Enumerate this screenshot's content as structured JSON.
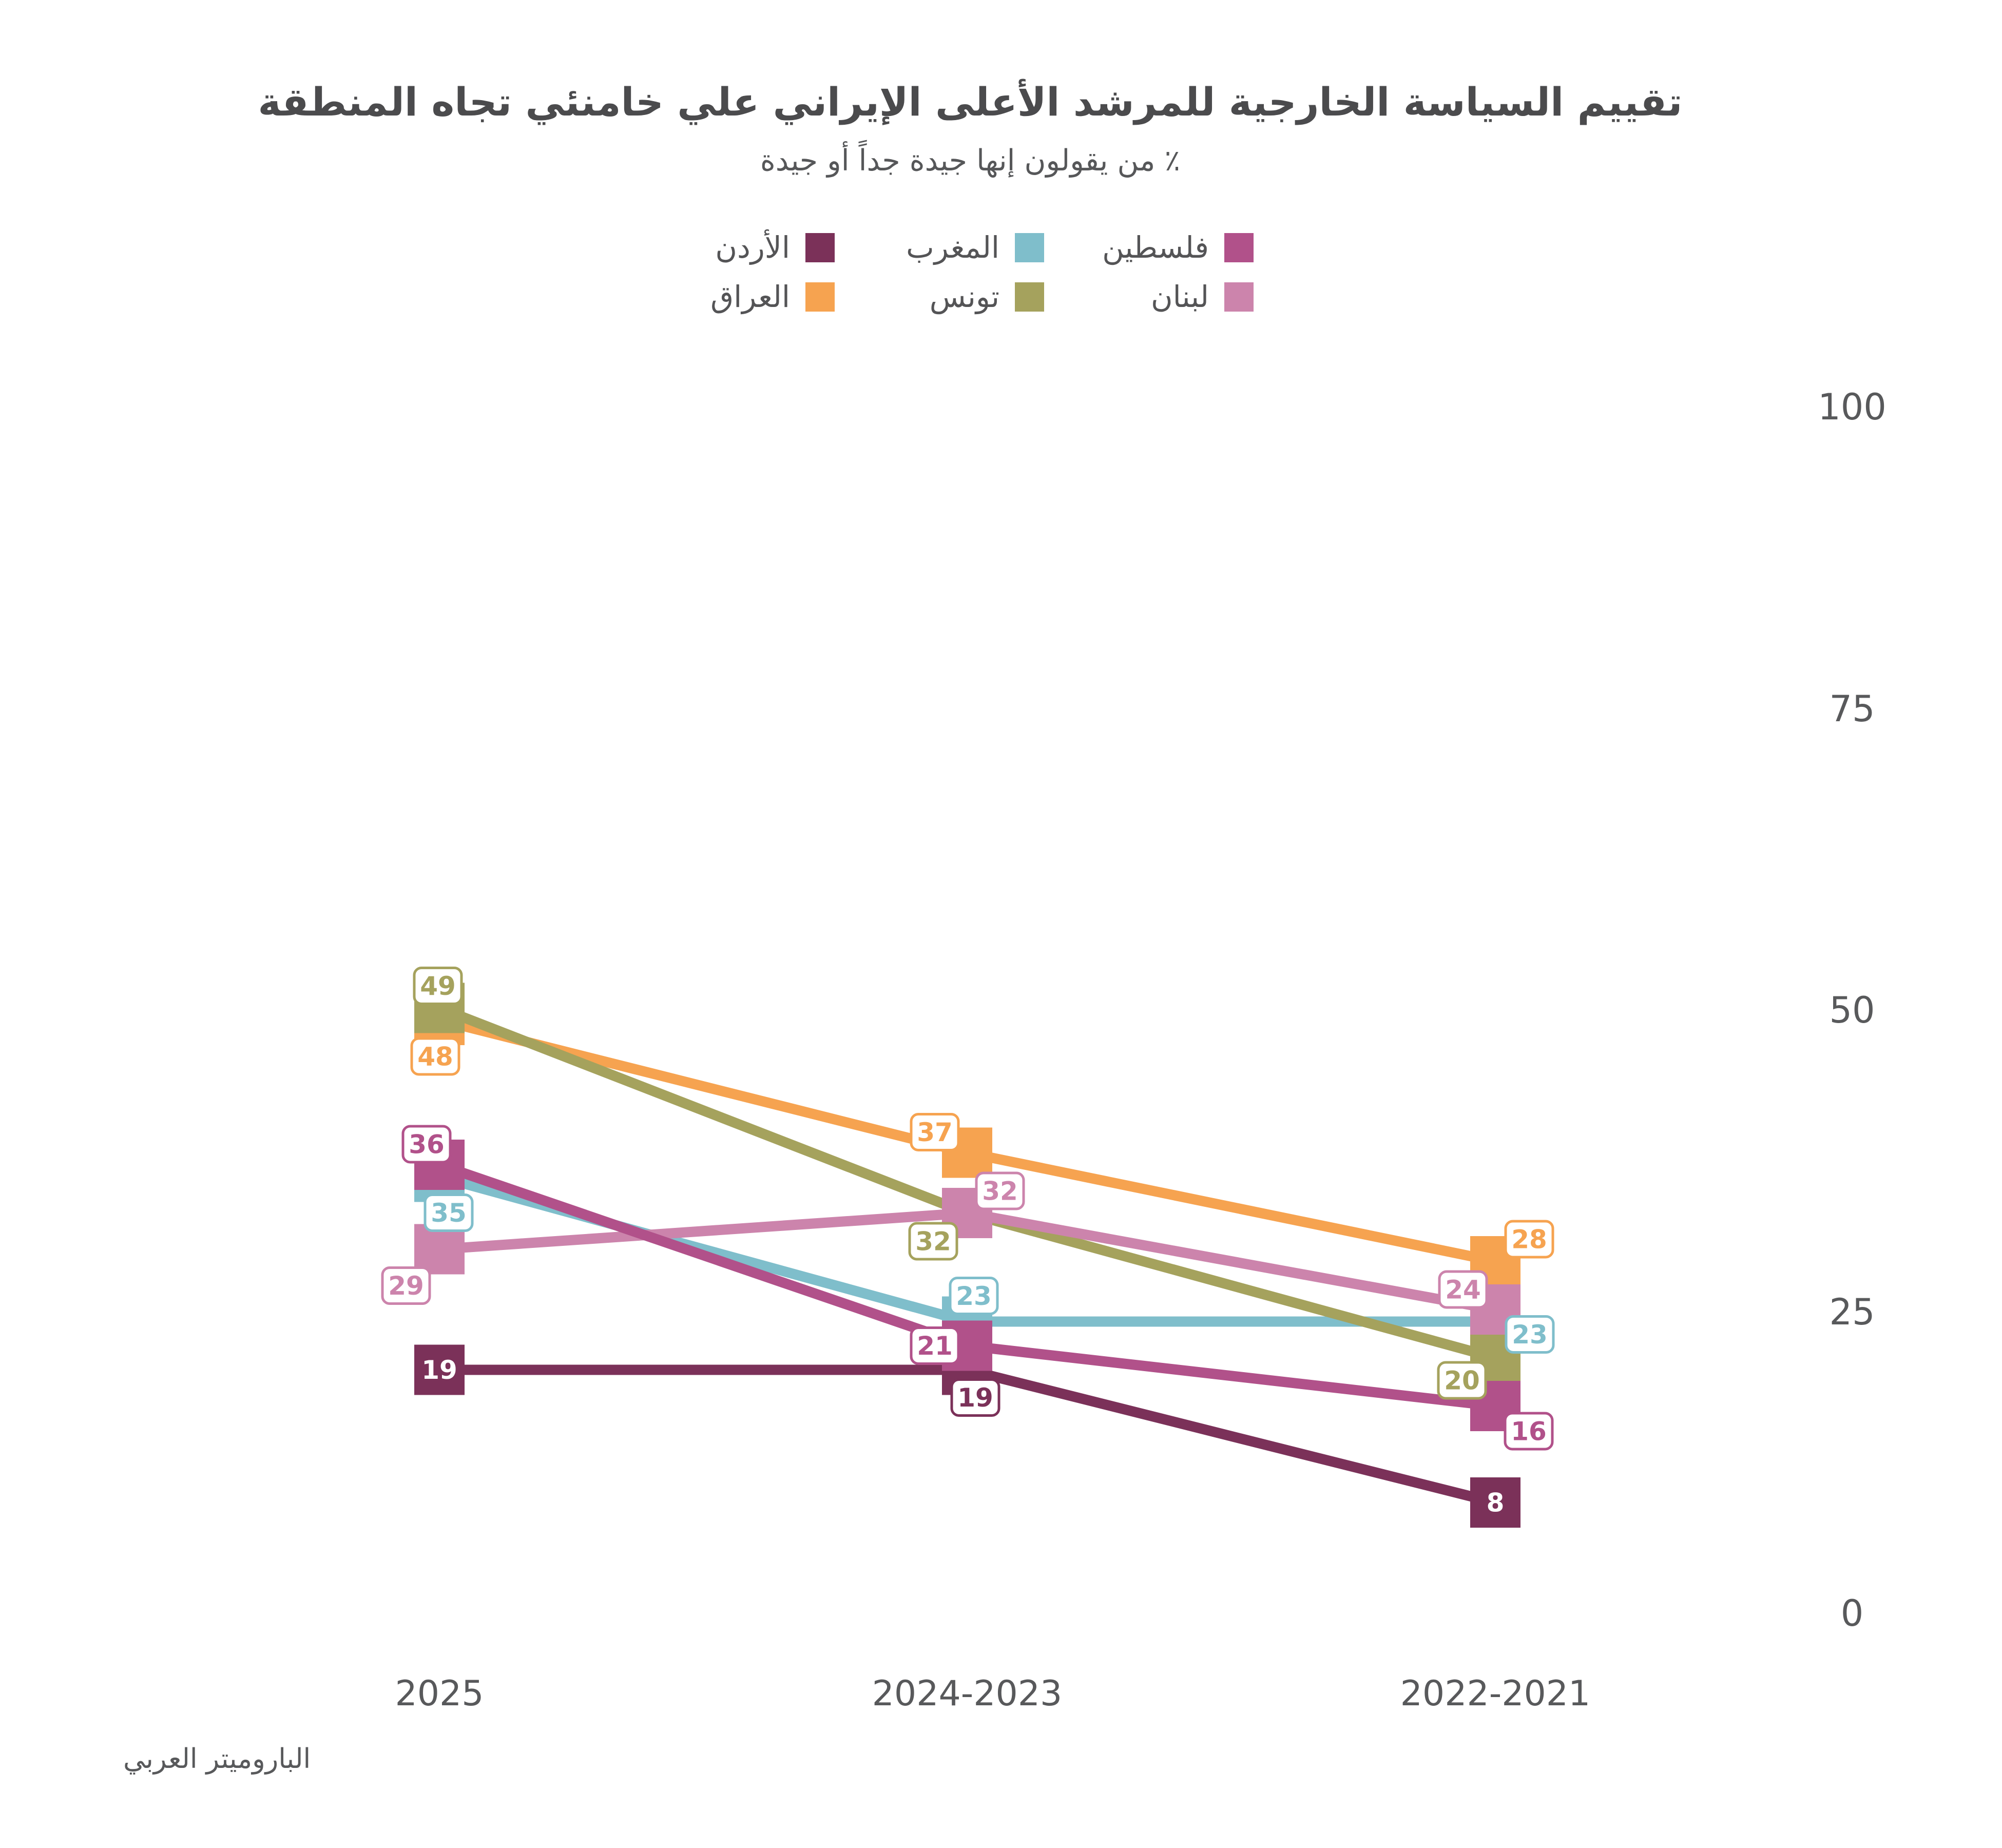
{
  "title": "تقييم السياسة الخارجية للمرشد الأعلى الإيراني علي خامنئي تجاه المنطقة",
  "subtitle": "٪ من يقولون إنها جيدة جداً أو جيدة",
  "source": "الباروميتر العربي",
  "colors": {
    "background": "#ffffff",
    "title_text": "#4b4b4d",
    "axis_text": "#58595b",
    "label_box_fill": "#ffffff",
    "inside_label_text": "#ffffff"
  },
  "legend": {
    "rows": [
      [
        "palestine",
        "morocco",
        "jordan"
      ],
      [
        "lebanon",
        "tunisia",
        "iraq"
      ]
    ]
  },
  "chart_data": {
    "type": "line",
    "categories": [
      "2025",
      "2024-2023",
      "2022-2021"
    ],
    "xlabel": "",
    "ylabel": "",
    "ylim": [
      0,
      100
    ],
    "yticks": [
      "100",
      "75",
      "50",
      "25",
      "0"
    ],
    "ytick_values": [
      100,
      75,
      50,
      25,
      0
    ],
    "grid": false,
    "legend_position": "top",
    "marker": "square",
    "series": [
      {
        "key": "morocco",
        "name": "المغرب",
        "color": "#7fbecb",
        "values": [
          35,
          23,
          23
        ]
      },
      {
        "key": "jordan",
        "name": "الأردن",
        "color": "#7b3159",
        "values": [
          19,
          19,
          8
        ]
      },
      {
        "key": "iraq",
        "name": "العراق",
        "color": "#f6a350",
        "values": [
          48,
          37,
          28
        ]
      },
      {
        "key": "tunisia",
        "name": "تونس",
        "color": "#a5a25d",
        "values": [
          49,
          32,
          20
        ]
      },
      {
        "key": "lebanon",
        "name": "لبنان",
        "color": "#cc84ac",
        "values": [
          29,
          32,
          24
        ]
      },
      {
        "key": "palestine",
        "name": "فلسطين",
        "color": "#b1518a",
        "values": [
          36,
          21,
          16
        ]
      }
    ]
  }
}
